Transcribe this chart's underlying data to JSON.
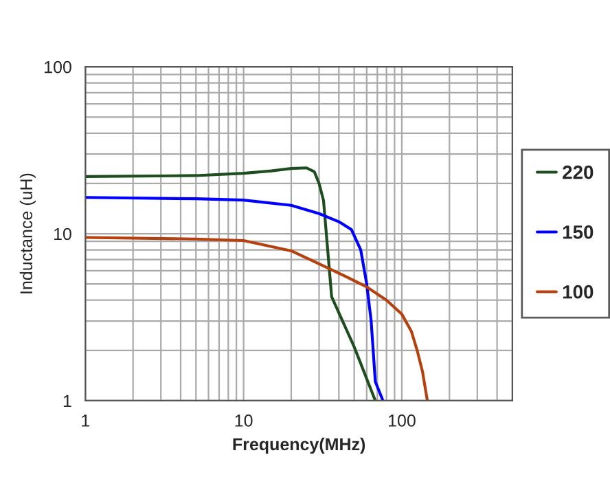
{
  "chart_data": {
    "type": "line",
    "xlabel": "Frequency(MHz)",
    "ylabel": "Inductance (uH)",
    "log": "xy",
    "xlim": [
      1,
      500
    ],
    "ylim": [
      1,
      100
    ],
    "xticks": [
      1,
      10,
      100
    ],
    "yticks": [
      1,
      10,
      100
    ],
    "grid": true,
    "legend": "right",
    "series": [
      {
        "name": "220",
        "color": "#1e4d1e",
        "x": [
          1,
          5,
          10,
          15,
          20,
          25,
          28,
          30,
          32,
          34,
          36,
          50,
          68
        ],
        "values": [
          22,
          22.3,
          23,
          23.8,
          24.6,
          24.8,
          23.5,
          20,
          15.8,
          8,
          4.2,
          2.1,
          1
        ]
      },
      {
        "name": "150",
        "color": "#0000ff",
        "x": [
          1,
          5,
          10,
          20,
          30,
          40,
          48,
          55,
          60,
          64,
          68,
          76
        ],
        "values": [
          16.5,
          16.2,
          15.9,
          14.8,
          13.2,
          11.8,
          10.6,
          8,
          5,
          3,
          1.3,
          1
        ]
      },
      {
        "name": "100",
        "color": "#b5410f",
        "x": [
          1,
          5,
          10,
          20,
          30,
          45,
          60,
          80,
          100,
          115,
          125,
          135,
          145
        ],
        "values": [
          9.5,
          9.3,
          9.1,
          7.9,
          6.6,
          5.5,
          4.8,
          4.0,
          3.3,
          2.6,
          2,
          1.5,
          1
        ]
      }
    ]
  }
}
